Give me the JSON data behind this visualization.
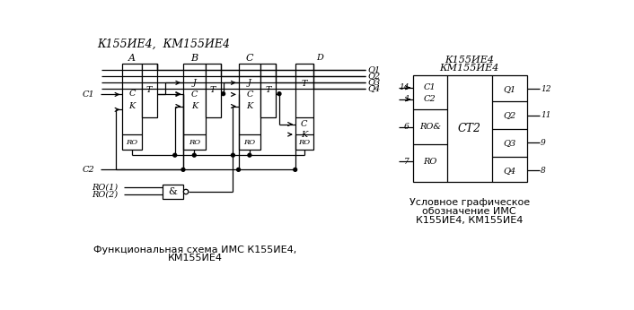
{
  "title_left": "К155ИЕ4,  КМ155ИЕ4",
  "caption_left_1": "Функциональная схема ИМС К155ИЕ4,",
  "caption_left_2": "КМ155ИЕ4",
  "title_right_1": "К155ИЕ4",
  "title_right_2": "КМ155ИЕ4",
  "caption_right_1": "Условное графическое",
  "caption_right_2": "обозначение ИМС",
  "caption_right_3": "К155ИЕ4, КМ155ИЕ4",
  "bg_color": "#ffffff",
  "lc": "#000000",
  "tc": "#000000"
}
